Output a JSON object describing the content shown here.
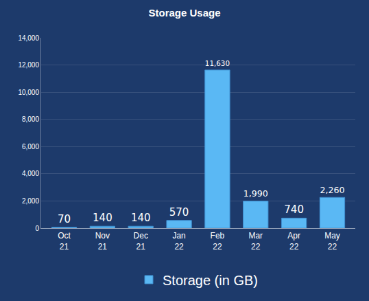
{
  "chart_data": {
    "type": "bar",
    "title": "Storage Usage",
    "categories": [
      "Oct 21",
      "Nov 21",
      "Dec 21",
      "Jan 22",
      "Feb 22",
      "Mar 22",
      "Apr 22",
      "May 22"
    ],
    "series": [
      {
        "name": "Storage (in GB)",
        "color": "#5ab8f4",
        "values": [
          70,
          140,
          140,
          570,
          11630,
          1990,
          740,
          2260
        ],
        "value_labels": [
          "70",
          "140",
          "140",
          "570",
          "11,630",
          "1,990",
          "740",
          "2,260"
        ]
      }
    ],
    "ylim": [
      0,
      14000
    ],
    "yticks": [
      0,
      {
        "value": 2000,
        "label": "2,000"
      },
      {
        "value": 4000,
        "label": "4,000"
      },
      {
        "value": 6000,
        "label": "6,000"
      },
      {
        "value": 8000,
        "label": "8,000"
      },
      {
        "value": 10000,
        "label": "10,000"
      },
      {
        "value": 12000,
        "label": "12,000"
      },
      {
        "value": 14000,
        "label": "14,000"
      }
    ],
    "grid": true,
    "legend": "bottom",
    "data_labels": true
  }
}
